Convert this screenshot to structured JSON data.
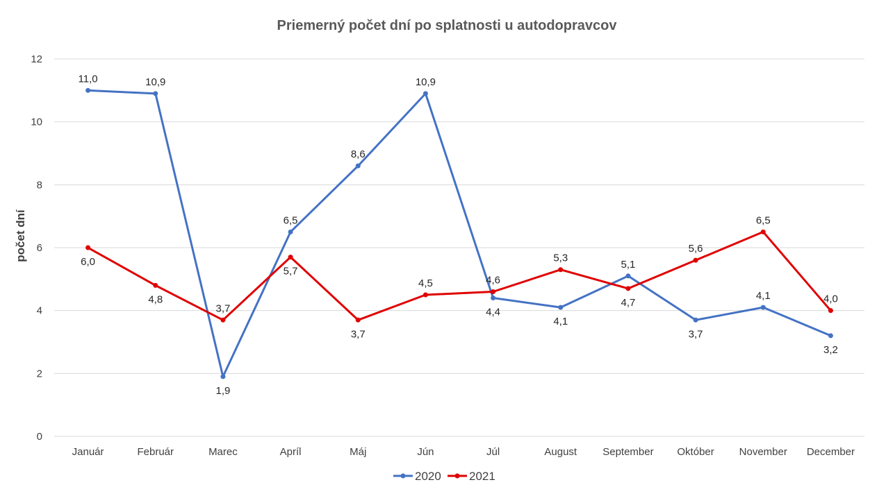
{
  "chart_data": {
    "type": "line",
    "title": "Priemerný počet dní po splatnosti u autodopravcov",
    "xlabel": "",
    "ylabel": "počet dní",
    "ylim": [
      0,
      12
    ],
    "yticks": [
      0,
      2,
      4,
      6,
      8,
      10,
      12
    ],
    "grid": true,
    "legend_position": "bottom",
    "categories": [
      "Január",
      "Február",
      "Marec",
      "Apríl",
      "Máj",
      "Jún",
      "Júl",
      "August",
      "September",
      "Október",
      "November",
      "December"
    ],
    "series": [
      {
        "name": "2020",
        "color": "#4472c4",
        "values": [
          11.0,
          10.9,
          1.9,
          6.5,
          8.6,
          10.9,
          4.4,
          4.1,
          5.1,
          3.7,
          4.1,
          3.2
        ],
        "labels": [
          "11,0",
          "10,9",
          "1,9",
          "6,5",
          "8,6",
          "10,9",
          "4,4",
          "4,1",
          "5,1",
          "3,7",
          "4,1",
          "3,2"
        ],
        "label_pos": [
          "above",
          "above",
          "below",
          "above",
          "above",
          "above",
          "below",
          "below",
          "above",
          "below",
          "above",
          "below"
        ]
      },
      {
        "name": "2021",
        "color": "#e00000",
        "values": [
          6.0,
          4.8,
          3.7,
          5.7,
          3.7,
          4.5,
          4.6,
          5.3,
          4.7,
          5.6,
          6.5,
          4.0
        ],
        "labels": [
          "6,0",
          "4,8",
          "3,7",
          "5,7",
          "3,7",
          "4,5",
          "4,6",
          "5,3",
          "4,7",
          "5,6",
          "6,5",
          "4,0"
        ],
        "label_pos": [
          "below",
          "below",
          "above",
          "below",
          "below",
          "above",
          "above",
          "above",
          "below",
          "above",
          "above",
          "above"
        ]
      }
    ]
  }
}
